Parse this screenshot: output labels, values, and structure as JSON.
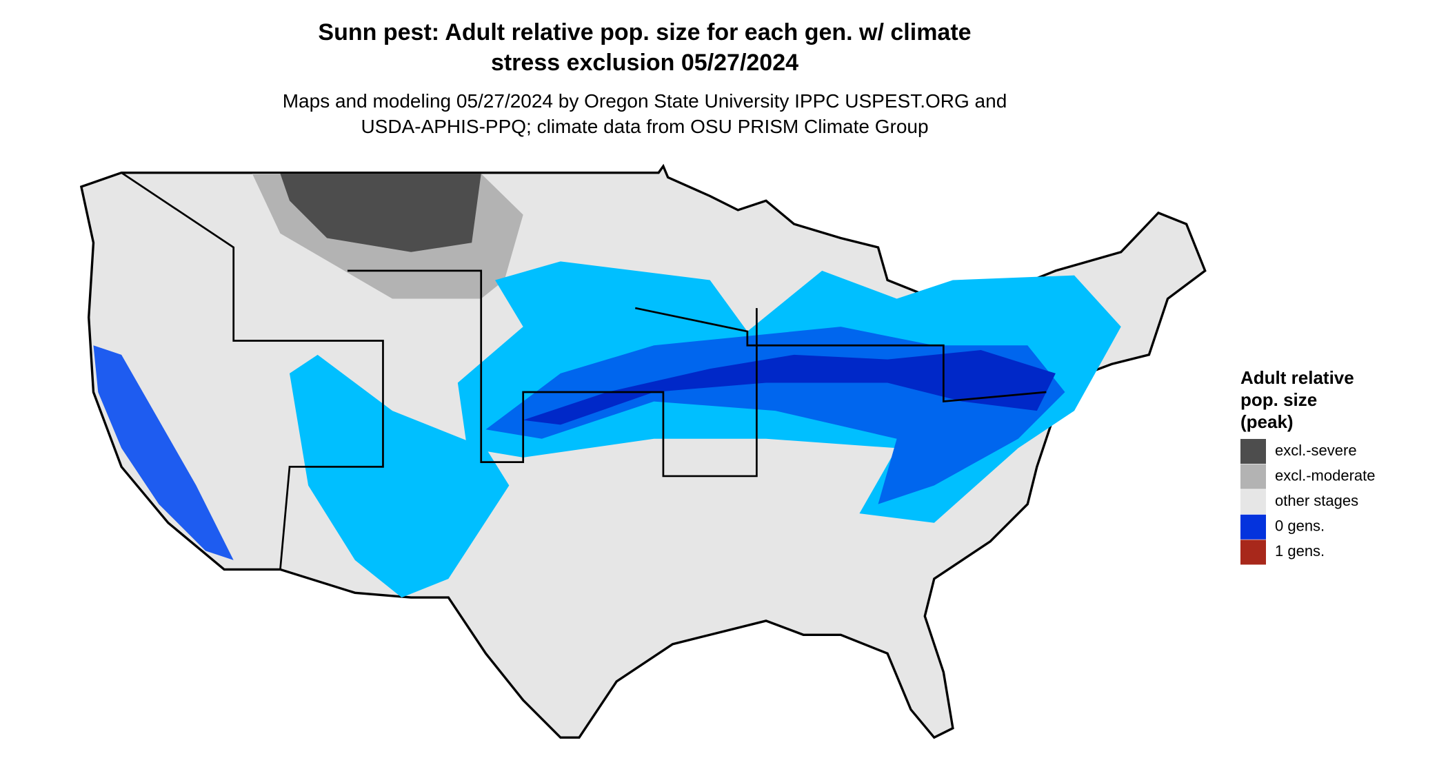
{
  "title_lines": [
    "Sunn pest: Adult relative pop. size for each gen. w/ climate",
    "stress exclusion 05/27/2024"
  ],
  "subtitle_lines": [
    "Maps and modeling 05/27/2024 by Oregon State University IPPC USPEST.ORG and",
    "USDA-APHIS-PPQ; climate data from OSU PRISM Climate Group"
  ],
  "legend": {
    "title_lines": [
      "Adult relative",
      "pop. size",
      "(peak)"
    ],
    "items": [
      {
        "label": "excl.-severe",
        "color": "#4d4d4d"
      },
      {
        "label": "excl.-moderate",
        "color": "#b3b3b3"
      },
      {
        "label": "other stages",
        "color": "#e6e6e6"
      },
      {
        "label": "0 gens.",
        "color": "#0433dd"
      },
      {
        "label": "1 gens.",
        "color": "#a8281b"
      }
    ]
  }
}
